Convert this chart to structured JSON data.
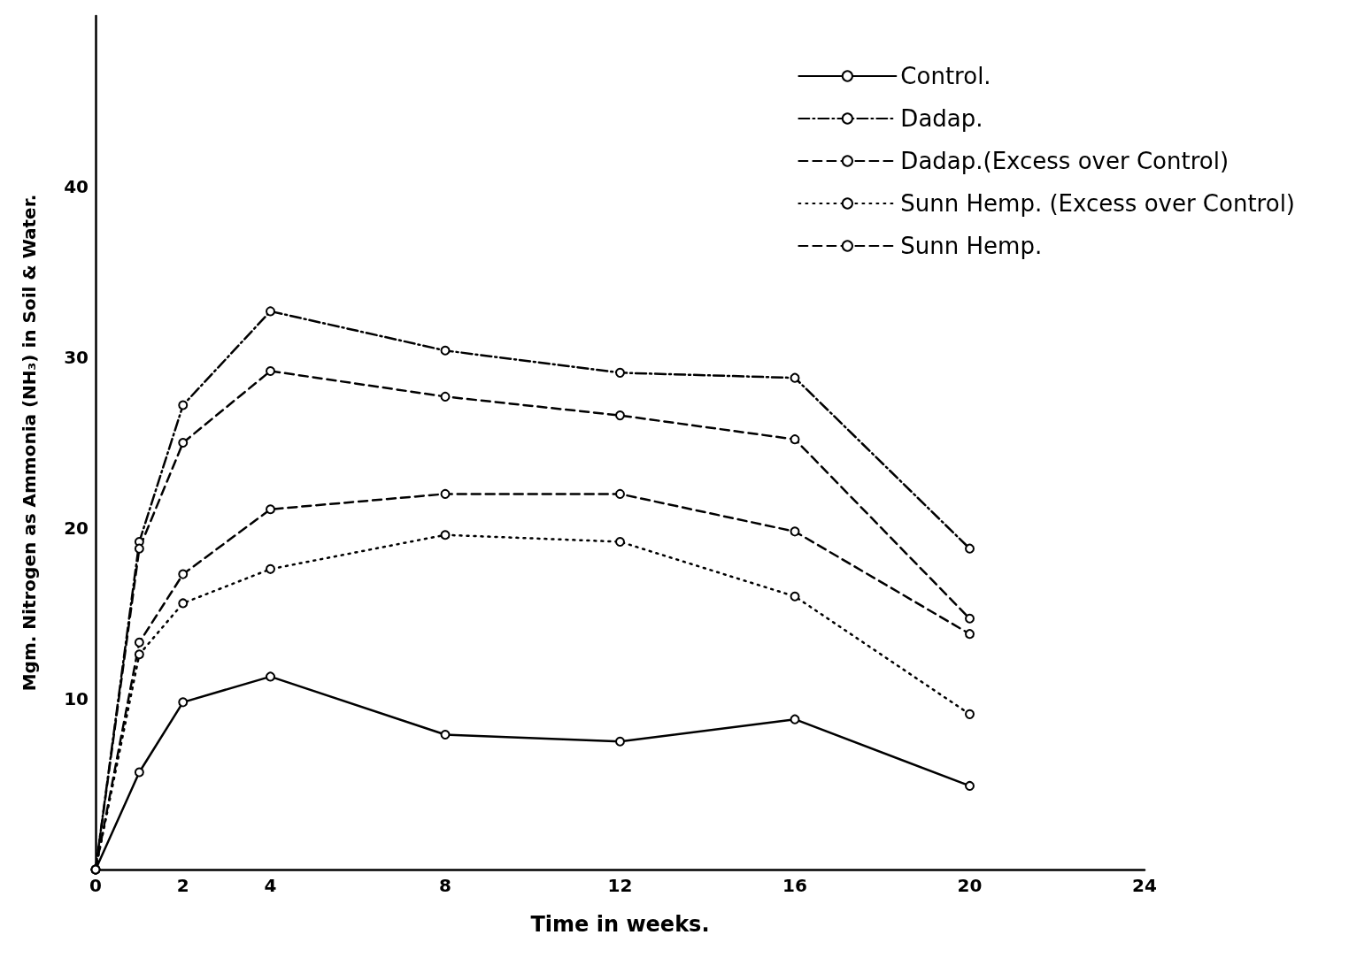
{
  "chart_data": {
    "type": "line",
    "xlabel": "Time in weeks.",
    "ylabel": "Mgm. Nitrogen as Ammonia (NH₃) in Soil & Water.",
    "x": [
      0,
      1,
      2,
      4,
      8,
      12,
      16,
      20
    ],
    "series": [
      {
        "name": "Control.",
        "color": "#000000",
        "line_style": "solid",
        "values": [
          0,
          5.7,
          9.8,
          11.3,
          7.9,
          7.5,
          8.8,
          4.9
        ]
      },
      {
        "name": "Dadap.",
        "color": "#000000",
        "line_style": "dashdot",
        "values": [
          0,
          19.2,
          27.2,
          32.7,
          30.4,
          29.1,
          28.8,
          18.8
        ]
      },
      {
        "name": "Dadap.(Excess over Control)",
        "color": "#000000",
        "line_style": "dashed",
        "values": [
          0,
          13.3,
          17.3,
          21.1,
          22.0,
          22.0,
          19.8,
          13.8
        ]
      },
      {
        "name": "Sunn Hemp. (Excess over Control)",
        "color": "#000000",
        "line_style": "dotted",
        "values": [
          0,
          12.6,
          15.6,
          17.6,
          19.6,
          19.2,
          16.0,
          9.1
        ]
      },
      {
        "name": "Sunn Hemp.",
        "color": "#000000",
        "line_style": "dashed",
        "values": [
          0,
          18.8,
          25.0,
          29.2,
          27.7,
          26.6,
          25.2,
          14.7
        ]
      }
    ],
    "xlim": [
      0,
      24
    ],
    "xticks": [
      0,
      2,
      4,
      8,
      12,
      16,
      20,
      24
    ],
    "ylim": [
      0,
      50
    ],
    "yticks": [
      10,
      20,
      30,
      40
    ],
    "marker": "circle",
    "grid": false,
    "legend": "top right"
  }
}
